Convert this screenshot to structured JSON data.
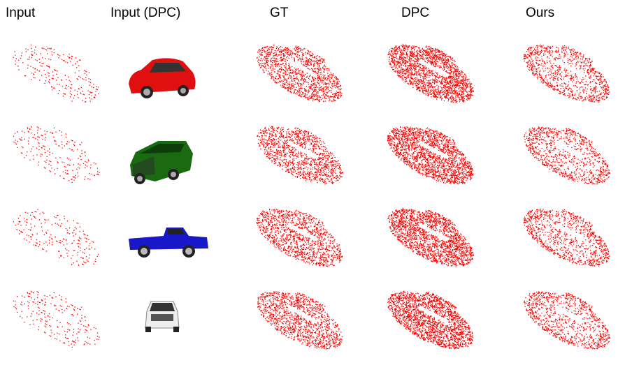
{
  "header": {
    "columns": [
      "Input",
      "Input (DPC)",
      "GT",
      "DPC",
      "Ours"
    ]
  }
}
